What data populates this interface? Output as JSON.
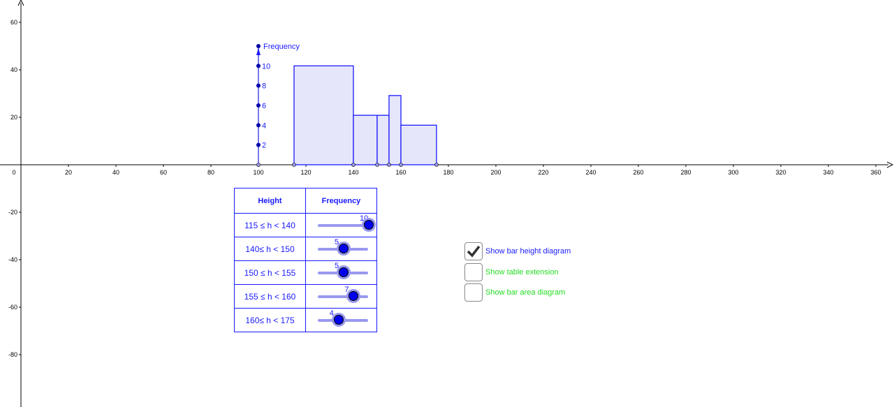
{
  "graphics": {
    "x_ticks": [
      20,
      40,
      60,
      80,
      100,
      120,
      140,
      160,
      180,
      200,
      220,
      240,
      260,
      280,
      300,
      320,
      340,
      360
    ],
    "y_ticks": [
      60,
      40,
      20,
      -20,
      -40,
      -60,
      -80
    ],
    "origin_label": "0",
    "axis_color": "#000000",
    "frequency_axis": {
      "label": "Frequency",
      "ticks": [
        2,
        4,
        6,
        8,
        10
      ],
      "color": "#1a1aff"
    },
    "histogram": {
      "bars": [
        {
          "from": 115,
          "to": 140,
          "frequency": 10
        },
        {
          "from": 140,
          "to": 150,
          "frequency": 5
        },
        {
          "from": 150,
          "to": 155,
          "frequency": 5
        },
        {
          "from": 155,
          "to": 160,
          "frequency": 7
        },
        {
          "from": 160,
          "to": 175,
          "frequency": 4
        }
      ],
      "fill": "#e6e6fa",
      "stroke": "#1a1aff"
    }
  },
  "table": {
    "headers": [
      "Height",
      "Frequency"
    ],
    "rows": [
      {
        "label": "115 ≤ h < 140",
        "value": 10
      },
      {
        "label": "140≤ h <  150",
        "value": 5
      },
      {
        "label": "150 ≤ h <  155",
        "value": 5
      },
      {
        "label": "155 ≤ h <  160",
        "value": 7
      },
      {
        "label": "160≤ h <  175",
        "value": 4
      }
    ],
    "slider_min": 0,
    "slider_max": 10
  },
  "checkboxes": [
    {
      "label": "Show bar height diagram",
      "checked": true,
      "color": "#1a1aff"
    },
    {
      "label": "Show table extension",
      "checked": false,
      "color": "#22dd22"
    },
    {
      "label": "Show bar area diagram",
      "checked": false,
      "color": "#22dd22"
    }
  ]
}
